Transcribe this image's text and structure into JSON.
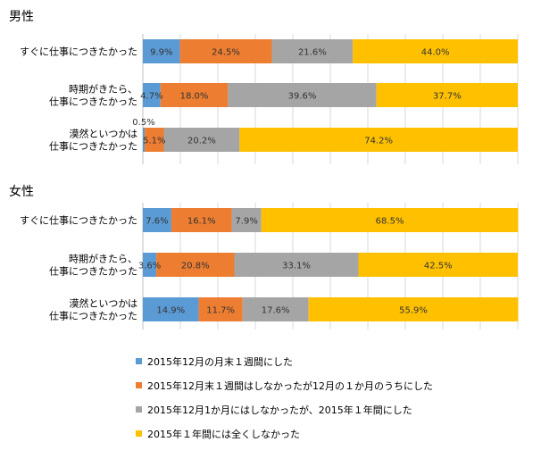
{
  "chart_data": {
    "type": "bar",
    "orientation": "horizontal",
    "stacked": true,
    "normalized": true,
    "xlim": [
      0,
      100
    ],
    "grid": true,
    "legend_position": "bottom",
    "series": [
      {
        "name": "2015年12月の月末１週間にした",
        "color": "#5B9BD5"
      },
      {
        "name": "2015年12月末１週間はしなかったが12月の１か月のうちにした",
        "color": "#ED7D31"
      },
      {
        "name": "2015年12月1か月にはしなかったが、2015年１年間にした",
        "color": "#A5A5A5"
      },
      {
        "name": "2015年１年間には全くしなかった",
        "color": "#FFC000"
      }
    ],
    "panels": [
      {
        "title": "男性",
        "categories": [
          {
            "lines": [
              "すぐに仕事につきたかった"
            ],
            "values": [
              9.9,
              24.5,
              21.6,
              44.0
            ],
            "labels": [
              "9.9%",
              "24.5%",
              "21.6%",
              "44.0%"
            ]
          },
          {
            "lines": [
              "時期がきたら、",
              "仕事につきたかった"
            ],
            "values": [
              4.7,
              18.0,
              39.6,
              37.7
            ],
            "labels": [
              "4.7%",
              "18.0%",
              "39.6%",
              "37.7%"
            ]
          },
          {
            "lines": [
              "漠然といつかは",
              "仕事につきたかった"
            ],
            "values": [
              0.5,
              5.1,
              20.2,
              74.2
            ],
            "labels": [
              "0.5%",
              "5.1%",
              "20.2%",
              "74.2%"
            ]
          }
        ]
      },
      {
        "title": "女性",
        "categories": [
          {
            "lines": [
              "すぐに仕事につきたかった"
            ],
            "values": [
              7.6,
              16.1,
              7.9,
              68.5
            ],
            "labels": [
              "7.6%",
              "16.1%",
              "7.9%",
              "68.5%"
            ]
          },
          {
            "lines": [
              "時期がきたら、",
              "仕事につきたかった"
            ],
            "values": [
              3.6,
              20.8,
              33.1,
              42.5
            ],
            "labels": [
              "3.6%",
              "20.8%",
              "33.1%",
              "42.5%"
            ]
          },
          {
            "lines": [
              "漠然といつかは",
              "仕事につきたかった"
            ],
            "values": [
              14.9,
              11.7,
              17.6,
              55.9
            ],
            "labels": [
              "14.9%",
              "11.7%",
              "17.6%",
              "55.9%"
            ]
          }
        ]
      }
    ]
  }
}
